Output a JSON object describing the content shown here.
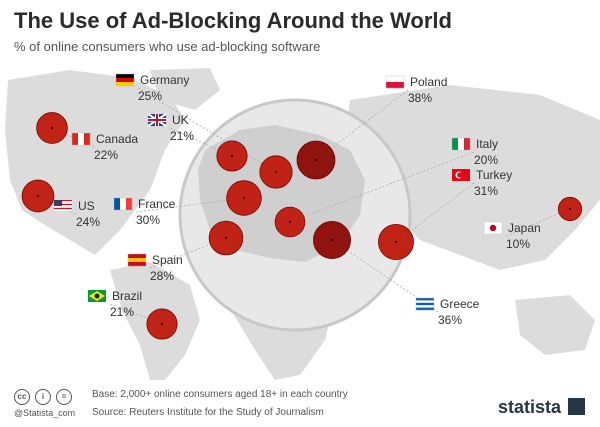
{
  "title": "The Use of Ad-Blocking Around the World",
  "subtitle": "% of online consumers who use ad-blocking software",
  "colors": {
    "bubble": "#c0180c",
    "bubble_dark": "#8b0a05",
    "land": "#dcdcdc",
    "lens": "#e8e8e8",
    "leader": "#aaaaaa"
  },
  "chart_data": {
    "type": "bubble-map",
    "title": "The Use of Ad-Blocking Around the World",
    "subtitle": "% of online consumers who use ad-blocking software",
    "unit": "%",
    "points": [
      {
        "country": "Germany",
        "value": 25,
        "value_label": "25%"
      },
      {
        "country": "UK",
        "value": 21,
        "value_label": "21%"
      },
      {
        "country": "Canada",
        "value": 22,
        "value_label": "22%"
      },
      {
        "country": "US",
        "value": 24,
        "value_label": "24%"
      },
      {
        "country": "France",
        "value": 30,
        "value_label": "30%"
      },
      {
        "country": "Spain",
        "value": 28,
        "value_label": "28%"
      },
      {
        "country": "Brazil",
        "value": 21,
        "value_label": "21%"
      },
      {
        "country": "Poland",
        "value": 38,
        "value_label": "38%"
      },
      {
        "country": "Italy",
        "value": 20,
        "value_label": "20%"
      },
      {
        "country": "Turkey",
        "value": 31,
        "value_label": "31%"
      },
      {
        "country": "Japan",
        "value": 10,
        "value_label": "10%"
      },
      {
        "country": "Greece",
        "value": 36,
        "value_label": "36%"
      }
    ]
  },
  "footer": {
    "base": "Base:  2,000+ online consumers aged 18+ in each country",
    "source": "Source: Reuters Institute for the Study of Journalism",
    "handle": "@Statista_com",
    "brand": "statista",
    "license_icons": [
      "cc-icon",
      "by-icon",
      "nd-icon"
    ]
  }
}
